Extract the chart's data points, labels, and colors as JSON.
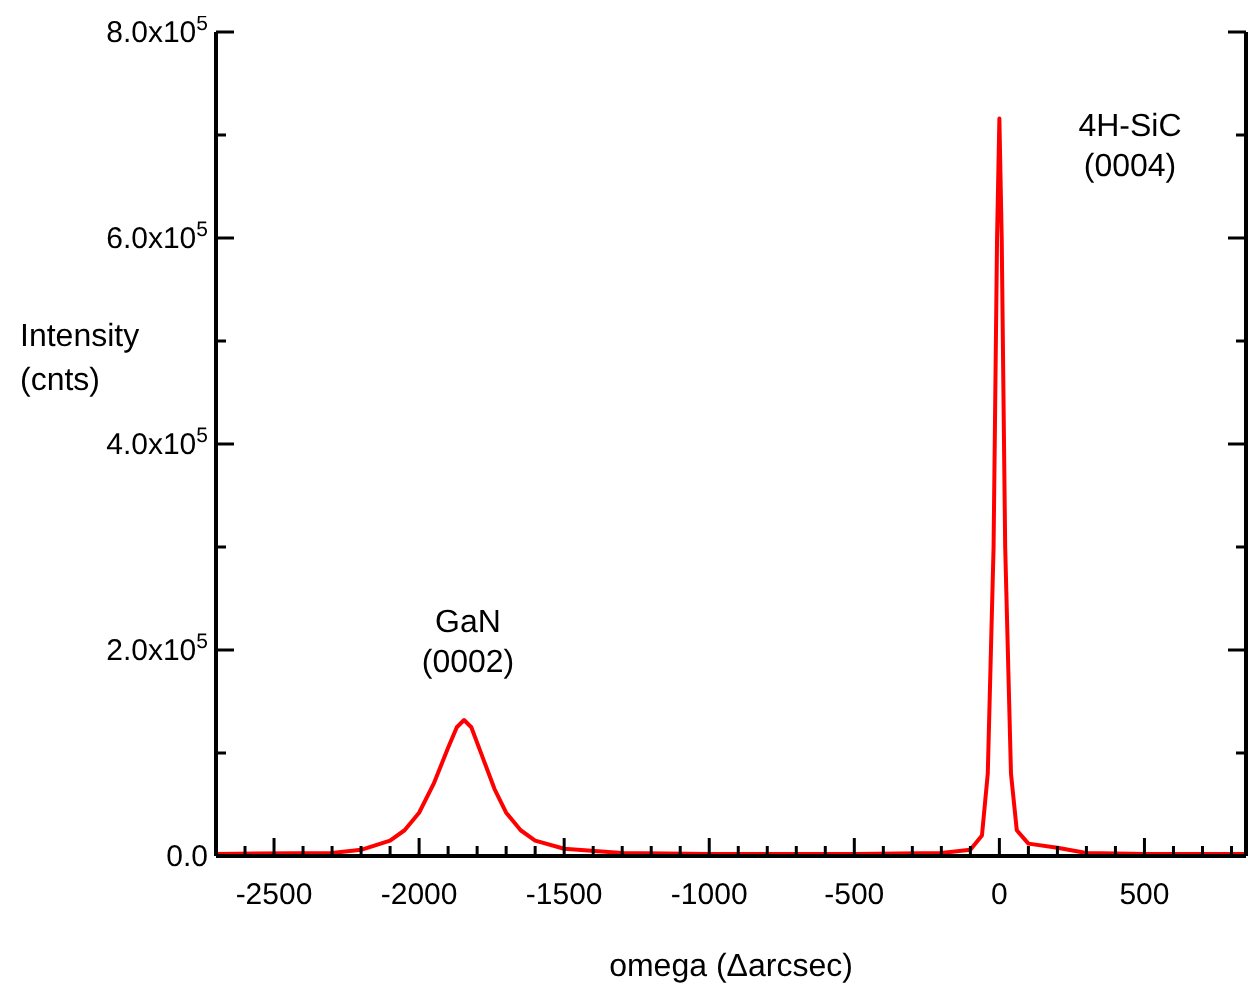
{
  "chart_data": {
    "type": "line",
    "xlabel": "omega (Δarcsec)",
    "ylabel": "Intensity (cnts)",
    "xlim": [
      -2700,
      850
    ],
    "ylim": [
      0,
      800000
    ],
    "xticks": [
      {
        "value": -2700,
        "label": null
      },
      {
        "value": -2600,
        "label": null
      },
      -2500,
      {
        "value": -2400,
        "label": null
      },
      {
        "value": -2300,
        "label": null
      },
      {
        "value": -2200,
        "label": null
      },
      {
        "value": -2100,
        "label": null
      },
      -2000,
      {
        "value": -1900,
        "label": null
      },
      {
        "value": -1800,
        "label": null
      },
      {
        "value": -1700,
        "label": null
      },
      {
        "value": -1600,
        "label": null
      },
      -1500,
      {
        "value": -1400,
        "label": null
      },
      {
        "value": -1300,
        "label": null
      },
      {
        "value": -1200,
        "label": null
      },
      {
        "value": -1100,
        "label": null
      },
      -1000,
      {
        "value": -900,
        "label": null
      },
      {
        "value": -800,
        "label": null
      },
      {
        "value": -700,
        "label": null
      },
      {
        "value": -600,
        "label": null
      },
      -500,
      {
        "value": -400,
        "label": null
      },
      {
        "value": -300,
        "label": null
      },
      {
        "value": -200,
        "label": null
      },
      {
        "value": -100,
        "label": null
      },
      0,
      {
        "value": 100,
        "label": null
      },
      {
        "value": 200,
        "label": null
      },
      {
        "value": 300,
        "label": null
      },
      {
        "value": 400,
        "label": null
      },
      500,
      {
        "value": 600,
        "label": null
      },
      {
        "value": 700,
        "label": null
      },
      {
        "value": 800,
        "label": null
      }
    ],
    "yticks": [
      {
        "value": 0,
        "label": "0.0"
      },
      {
        "value": 100000,
        "label": null
      },
      {
        "value": 200000,
        "label": "2.0x10$^{5}$"
      },
      {
        "value": 300000,
        "label": null
      },
      {
        "value": 400000,
        "label": "4.0x10$^{5}$"
      },
      {
        "value": 500000,
        "label": null
      },
      {
        "value": 600000,
        "label": "6.0x10$^{5}$"
      },
      {
        "value": 700000,
        "label": null
      },
      {
        "value": 800000,
        "label": "8.0x10$^{5}$"
      }
    ],
    "marker": "none",
    "line_style": "solid",
    "annotations": [
      "GaN\n(0002)",
      "4H-SiC\n(0004)"
    ],
    "series": [
      {
        "color": "#ff0000",
        "x": [
          -2700,
          -2300,
          -2200,
          -2100,
          -2050,
          -2000,
          -1950,
          -1900,
          -1870,
          -1845,
          -1820,
          -1780,
          -1740,
          -1700,
          -1650,
          -1600,
          -1500,
          -1300,
          -1000,
          -500,
          -200,
          -100,
          -60,
          -40,
          -20,
          -8,
          0,
          8,
          20,
          40,
          60,
          100,
          200,
          300,
          500,
          850
        ],
        "values": [
          2000,
          3000,
          6000,
          15000,
          25000,
          42000,
          70000,
          105000,
          125000,
          132000,
          125000,
          95000,
          65000,
          42000,
          25000,
          15000,
          7000,
          3000,
          2000,
          2000,
          3000,
          6000,
          20000,
          80000,
          300000,
          600000,
          716000,
          600000,
          300000,
          80000,
          25000,
          12000,
          8000,
          3000,
          2000,
          2000
        ]
      }
    ]
  }
}
